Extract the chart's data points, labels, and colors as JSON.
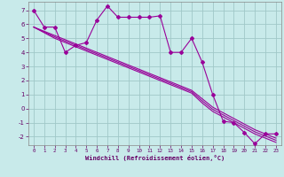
{
  "xlabel": "Windchill (Refroidissement éolien,°C)",
  "bg_color": "#c8eaea",
  "grid_color": "#a0c8c8",
  "line_color": "#990099",
  "hours": [
    0,
    1,
    2,
    3,
    4,
    5,
    6,
    7,
    8,
    9,
    10,
    11,
    12,
    13,
    14,
    15,
    16,
    17,
    18,
    19,
    20,
    21,
    22,
    23
  ],
  "jagged": [
    7.0,
    5.8,
    5.8,
    4.0,
    4.5,
    4.7,
    6.3,
    7.3,
    6.5,
    6.5,
    6.5,
    6.5,
    6.6,
    4.0,
    4.0,
    5.0,
    3.3,
    1.0,
    -0.9,
    -1.0,
    -1.7,
    -2.5,
    -1.8,
    -1.8
  ],
  "trend1": [
    5.8,
    5.5,
    5.2,
    4.9,
    4.6,
    4.3,
    4.0,
    3.7,
    3.4,
    3.1,
    2.8,
    2.5,
    2.2,
    1.9,
    1.6,
    1.3,
    0.7,
    0.1,
    -0.3,
    -0.7,
    -1.1,
    -1.5,
    -1.8,
    -2.1
  ],
  "trend2": [
    5.8,
    5.4,
    5.0,
    4.7,
    4.4,
    4.1,
    3.8,
    3.5,
    3.2,
    2.9,
    2.6,
    2.3,
    2.0,
    1.7,
    1.4,
    1.1,
    0.4,
    -0.2,
    -0.6,
    -1.0,
    -1.4,
    -1.8,
    -2.1,
    -2.4
  ],
  "trend3": [
    5.8,
    5.45,
    5.1,
    4.8,
    4.5,
    4.2,
    3.9,
    3.6,
    3.3,
    3.0,
    2.7,
    2.4,
    2.1,
    1.8,
    1.5,
    1.2,
    0.55,
    -0.05,
    -0.45,
    -0.85,
    -1.25,
    -1.65,
    -1.95,
    -2.25
  ],
  "ylim": [
    -2.6,
    7.6
  ],
  "yticks": [
    -2,
    -1,
    0,
    1,
    2,
    3,
    4,
    5,
    6,
    7
  ],
  "xticks": [
    0,
    1,
    2,
    3,
    4,
    5,
    6,
    7,
    8,
    9,
    10,
    11,
    12,
    13,
    14,
    15,
    16,
    17,
    18,
    19,
    20,
    21,
    22,
    23
  ]
}
